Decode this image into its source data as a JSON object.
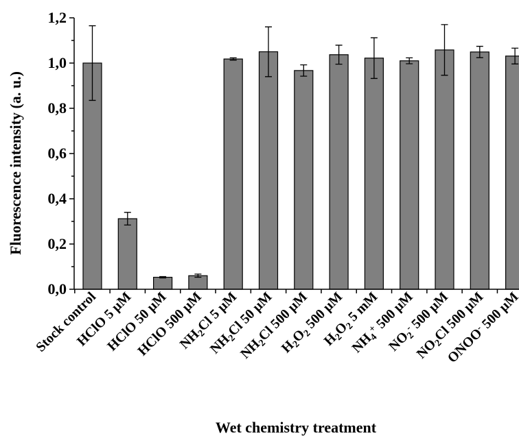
{
  "chart_data": {
    "type": "bar",
    "xlabel": "Wet chemistry treatment",
    "ylabel": "Fluorescence intensity (a. u.)",
    "ylim": [
      0,
      1.2
    ],
    "yticks": [
      "0,0",
      "0,2",
      "0,4",
      "0,6",
      "0,8",
      "1,0",
      "1,2"
    ],
    "categories": [
      "Stock control",
      "HClO 5 µM",
      "HClO 50 µM",
      "HClO 500 µM",
      "NH2Cl 5 µM",
      "NH2Cl 50 µM",
      "NH2Cl 500 µM",
      "H2O2 500 µM",
      "H2O2 5 mM",
      "NH4+ 500 µM",
      "NO2- 500 µM",
      "NO2Cl 500 µM",
      "ONOO- 500 µM"
    ],
    "category_labels": [
      [
        {
          "t": "Stock control"
        }
      ],
      [
        {
          "t": "HClO 5 µM"
        }
      ],
      [
        {
          "t": "HClO 50 µM"
        }
      ],
      [
        {
          "t": "HClO 500 µM"
        }
      ],
      [
        {
          "t": "NH"
        },
        {
          "t": "2",
          "s": "sub"
        },
        {
          "t": "Cl 5 µM"
        }
      ],
      [
        {
          "t": "NH"
        },
        {
          "t": "2",
          "s": "sub"
        },
        {
          "t": "Cl 50 µM"
        }
      ],
      [
        {
          "t": "NH"
        },
        {
          "t": "2",
          "s": "sub"
        },
        {
          "t": "Cl 500 µM"
        }
      ],
      [
        {
          "t": "H"
        },
        {
          "t": "2",
          "s": "sub"
        },
        {
          "t": "O"
        },
        {
          "t": "2",
          "s": "sub"
        },
        {
          "t": " 500 µM"
        }
      ],
      [
        {
          "t": "H"
        },
        {
          "t": "2",
          "s": "sub"
        },
        {
          "t": "O"
        },
        {
          "t": "2",
          "s": "sub"
        },
        {
          "t": " 5 mM"
        }
      ],
      [
        {
          "t": "NH"
        },
        {
          "t": "4",
          "s": "sub"
        },
        {
          "t": "+",
          "s": "sup"
        },
        {
          "t": " 500 µM"
        }
      ],
      [
        {
          "t": "NO"
        },
        {
          "t": "2",
          "s": "sub"
        },
        {
          "t": "-",
          "s": "sup"
        },
        {
          "t": " 500 µM"
        }
      ],
      [
        {
          "t": "NO"
        },
        {
          "t": "2",
          "s": "sub"
        },
        {
          "t": "Cl 500 µM"
        }
      ],
      [
        {
          "t": "ONOO"
        },
        {
          "t": "-",
          "s": "sup"
        },
        {
          "t": " 500 µM"
        }
      ]
    ],
    "values": [
      1.0,
      0.312,
      0.053,
      0.06,
      1.018,
      1.05,
      0.967,
      1.037,
      1.022,
      1.01,
      1.058,
      1.049,
      1.031
    ],
    "errors": [
      0.165,
      0.028,
      0.003,
      0.007,
      0.005,
      0.11,
      0.025,
      0.042,
      0.09,
      0.013,
      0.112,
      0.025,
      0.035
    ],
    "bar_color": "#808080",
    "grid": false
  }
}
